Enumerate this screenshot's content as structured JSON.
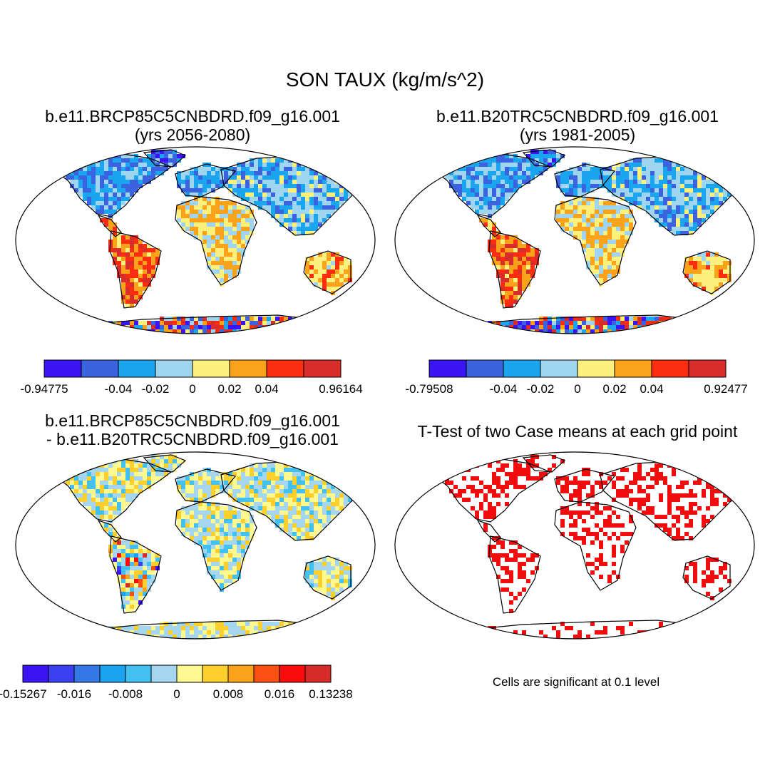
{
  "main_title": "SON TAUX (kg/m/s^2)",
  "panels": [
    {
      "id": "case",
      "title_line1": "b.e11.BRCP85C5CNBDRD.f09_g16.001",
      "title_line2": "(yrs 2056-2080)",
      "palette": "sequential8",
      "colorbar": {
        "colors": [
          "#3a14f2",
          "#3b63e0",
          "#19a6ee",
          "#9fd5ee",
          "#fdf07d",
          "#fba21b",
          "#fa2d11",
          "#d92d2c"
        ],
        "labels": [
          "-0.94775",
          "-0.04",
          "-0.02",
          "0",
          "0.02",
          "0.04",
          "0.96164"
        ]
      }
    },
    {
      "id": "control",
      "title_line1": "b.e11.B20TRC5CNBDRD.f09_g16.001",
      "title_line2": "(yrs 1981-2005)",
      "palette": "sequential8",
      "colorbar": {
        "colors": [
          "#3a14f2",
          "#3b63e0",
          "#19a6ee",
          "#9fd5ee",
          "#fdf07d",
          "#fba21b",
          "#fa2d11",
          "#d92d2c"
        ],
        "labels": [
          "-0.79508",
          "-0.04",
          "-0.02",
          "0",
          "0.02",
          "0.04",
          "0.92477"
        ]
      }
    },
    {
      "id": "diff",
      "title_line1": "b.e11.BRCP85C5CNBDRD.f09_g16.001",
      "title_line2": "- b.e11.B20TRC5CNBDRD.f09_g16.001",
      "palette": "diverging12",
      "colorbar": {
        "colors": [
          "#3a14f2",
          "#3a3ff0",
          "#3677e6",
          "#1aa4ef",
          "#42c0ef",
          "#a4d7ef",
          "#fdf88f",
          "#fdcf2c",
          "#fba21b",
          "#fa5112",
          "#f80d0c",
          "#d72b2a"
        ],
        "labels": [
          "-0.15267",
          "-0.016",
          "-0.008",
          "0",
          "0.008",
          "0.016",
          "0.13238"
        ]
      }
    },
    {
      "id": "ttest",
      "title_line1": "T-Test of two Case means at each grid point",
      "palette": "significance",
      "significant_color": "#f00d0d",
      "note": "Cells are significant at 0.1 level"
    }
  ]
}
